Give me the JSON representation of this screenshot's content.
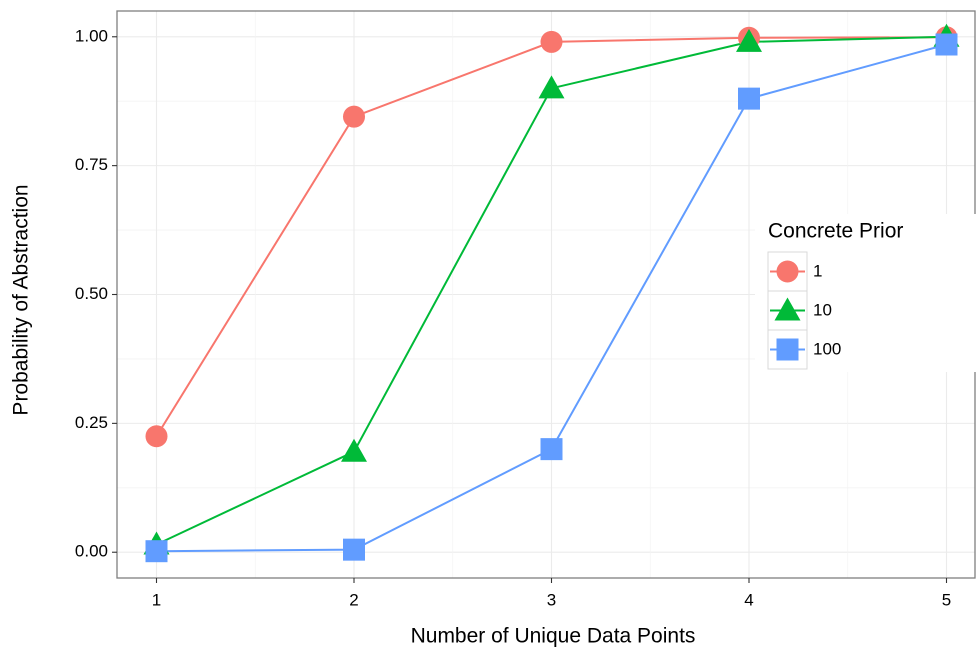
{
  "chart_data": {
    "type": "line",
    "x_label": "Number of Unique Data Points",
    "y_label": "Probability of Abstraction",
    "x": [
      1,
      2,
      3,
      4,
      5
    ],
    "xlim": [
      0.8,
      5.2
    ],
    "xticks": [
      1,
      2,
      3,
      4,
      5
    ],
    "ylim": [
      -0.05,
      1.05
    ],
    "yticks": [
      {
        "value": 0,
        "label": "0.00"
      },
      {
        "value": 0.25,
        "label": "0.25"
      },
      {
        "value": 0.5,
        "label": "0.50"
      },
      {
        "value": 0.75,
        "label": "0.75"
      },
      {
        "value": 1,
        "label": "1.00"
      }
    ],
    "grid": true,
    "legend_title": "Concrete Prior",
    "legend_position": "right",
    "series": [
      {
        "name": "1",
        "color": "#F8766D",
        "marker": "circle",
        "values": [
          0.225,
          0.845,
          0.99,
          0.998,
          0.999
        ]
      },
      {
        "name": "10",
        "color": "#00BA38",
        "marker": "triangle",
        "values": [
          0.015,
          0.195,
          0.9,
          0.99,
          1.0
        ]
      },
      {
        "name": "100",
        "color": "#619CFF",
        "marker": "square",
        "values": [
          0.002,
          0.005,
          0.2,
          0.88,
          0.985
        ]
      }
    ]
  }
}
